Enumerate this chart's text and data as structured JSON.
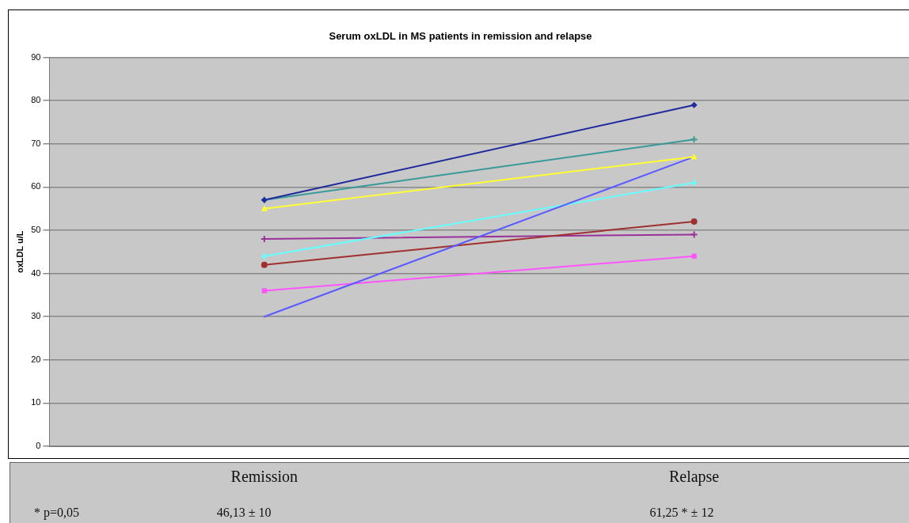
{
  "chart_data": {
    "type": "line",
    "title": "Serum oxLDL in MS patients in remission and relapse",
    "ylabel": "oxLDL u/L",
    "categories": [
      "Remission",
      "Relapse"
    ],
    "ylim": [
      0,
      90
    ],
    "yticks": [
      0,
      10,
      20,
      30,
      40,
      50,
      60,
      70,
      80,
      90
    ],
    "grid": "y",
    "legend": false,
    "tick_labels": "y",
    "line_style": "solid",
    "series": [
      {
        "color": "#1f2a9c",
        "marker": "diamond",
        "values": [
          57,
          79
        ]
      },
      {
        "color": "#3a9a9a",
        "marker": "cross",
        "values": [
          57,
          71
        ]
      },
      {
        "color": "#ffff33",
        "marker": "triangle",
        "values": [
          55,
          67
        ]
      },
      {
        "color": "#5a5aff",
        "marker": "none",
        "values": [
          30,
          67
        ]
      },
      {
        "color": "#66ffff",
        "marker": "cross",
        "values": [
          44,
          61
        ]
      },
      {
        "color": "#a03030",
        "marker": "circle",
        "values": [
          42,
          52
        ]
      },
      {
        "color": "#993399",
        "marker": "cross",
        "values": [
          48,
          49
        ]
      },
      {
        "color": "#ff55ff",
        "marker": "square",
        "values": [
          36,
          44
        ]
      }
    ],
    "annotations": [
      "* p=0,05",
      "46,13 ± 10",
      "61,25 * ± 12"
    ]
  }
}
